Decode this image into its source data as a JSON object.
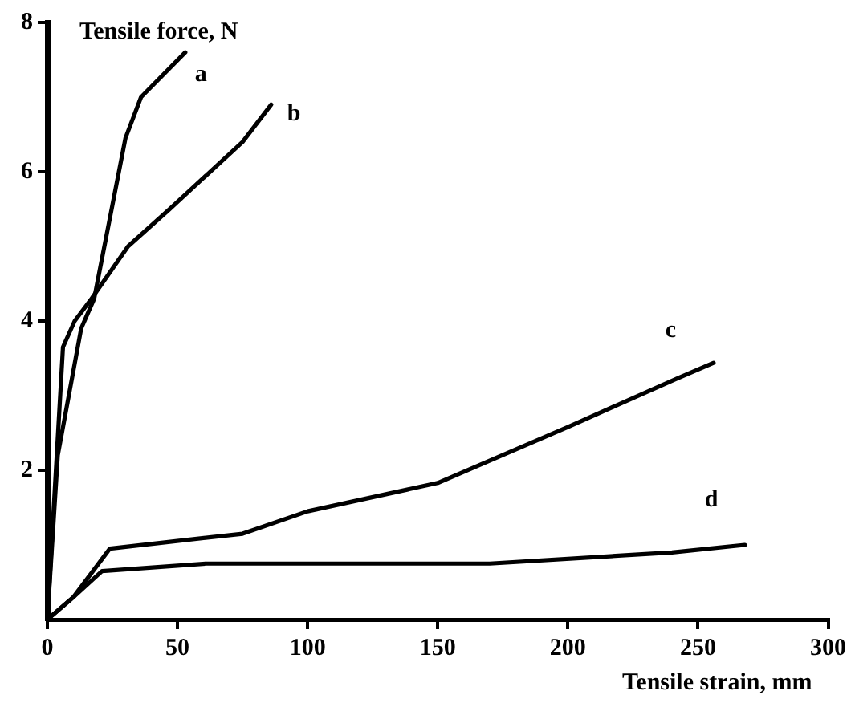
{
  "chart_data": {
    "type": "line",
    "xlabel": "Tensile strain, mm",
    "ylabel": "Tensile force, N",
    "xlim": [
      0,
      300
    ],
    "xticks": [
      0,
      50,
      100,
      150,
      200,
      250,
      300
    ],
    "ylim": [
      0,
      8
    ],
    "yticks": [
      2,
      4,
      6,
      8
    ],
    "grid": false,
    "legend": false,
    "marker": "none",
    "line_style": "solid",
    "series": [
      {
        "name": "a",
        "color": "#000000",
        "x": [
          0,
          4,
          13,
          18,
          30,
          36,
          53
        ],
        "values": [
          0,
          2.2,
          3.9,
          4.3,
          6.45,
          7.0,
          7.6
        ]
      },
      {
        "name": "b",
        "color": "#000000",
        "x": [
          0,
          6,
          10.5,
          17,
          31,
          47,
          75,
          86
        ],
        "values": [
          0,
          3.65,
          4.0,
          4.3,
          5.0,
          5.5,
          6.4,
          6.9
        ]
      },
      {
        "name": "c",
        "color": "#000000",
        "x": [
          0,
          10,
          24,
          75,
          100,
          150,
          200,
          242,
          256
        ],
        "values": [
          0,
          0.3,
          0.95,
          1.15,
          1.45,
          1.83,
          2.58,
          3.23,
          3.44
        ]
      },
      {
        "name": "d",
        "color": "#000000",
        "x": [
          0,
          10,
          21,
          61,
          170,
          240,
          268
        ],
        "values": [
          0,
          0.3,
          0.65,
          0.75,
          0.75,
          0.9,
          1.0
        ]
      }
    ]
  }
}
